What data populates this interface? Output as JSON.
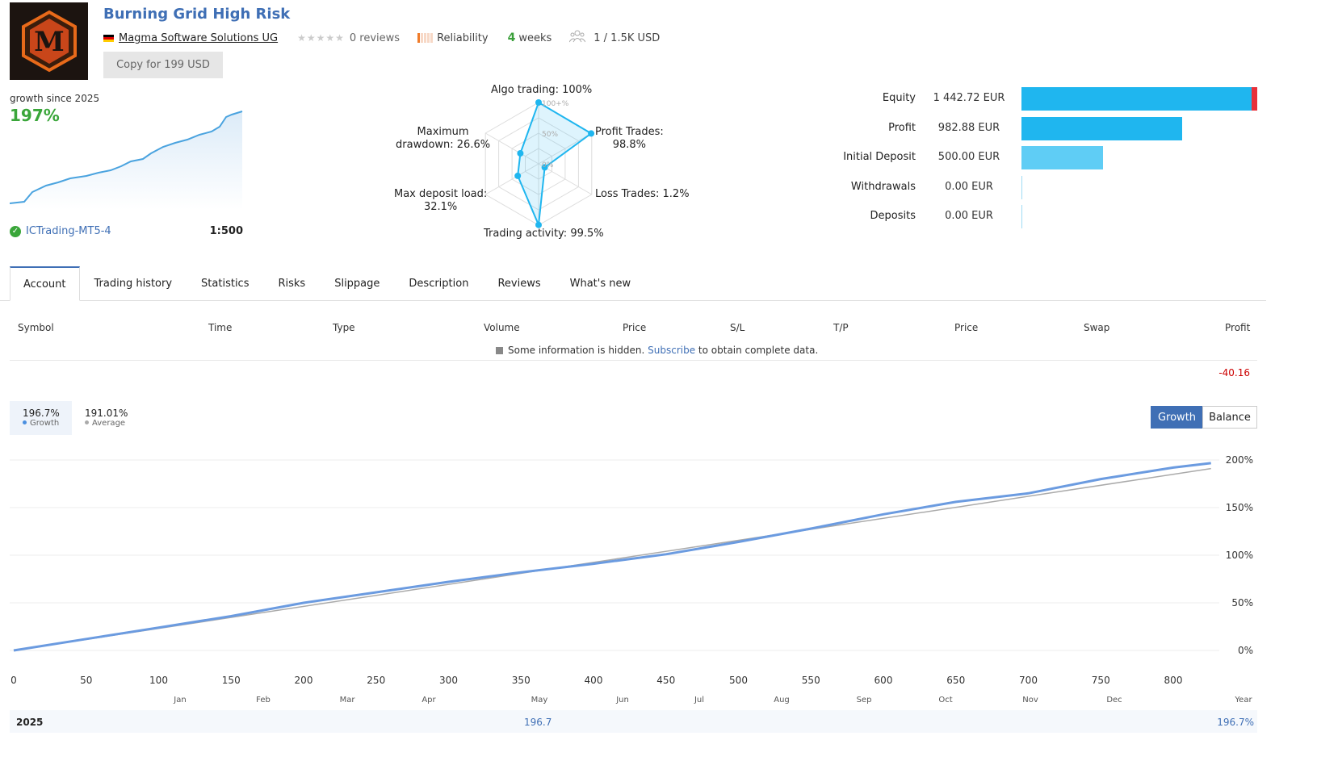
{
  "header": {
    "logo_letter": "M",
    "title": "Burning Grid High Risk",
    "author": "Magma Software Solutions UG",
    "reviews": "0 reviews",
    "reliability": "Reliability",
    "weeks_number": "4",
    "weeks_label": "weeks",
    "subscribers": "1 / 1.5K USD",
    "copy_button": "Copy for 199 USD"
  },
  "growth_summary": {
    "label": "growth since 2025",
    "value": "197%",
    "broker": "ICTrading-MT5-4",
    "leverage": "1:500"
  },
  "radar": {
    "labels": {
      "algo": "Algo trading: 100%",
      "profit_trades_1": "Profit Trades:",
      "profit_trades_2": "98.8%",
      "loss_trades": "Loss Trades: 1.2%",
      "activity": "Trading activity: 99.5%",
      "deposit_load_1": "Max deposit load:",
      "deposit_load_2": "32.1%",
      "drawdown_1": "Maximum",
      "drawdown_2": "drawdown: 26.6%"
    },
    "scale_labels": [
      "100+%",
      "50%",
      "0%"
    ],
    "values": {
      "algo": 100,
      "profit_trades": 98.8,
      "loss_trades": 1.2,
      "activity": 99.5,
      "deposit_load": 32.1,
      "drawdown": 26.6
    }
  },
  "balance_bars": [
    {
      "label": "Equity",
      "value": "1 442.72 EUR",
      "amount": 1442.72
    },
    {
      "label": "Profit",
      "value": "982.88 EUR",
      "amount": 982.88
    },
    {
      "label": "Initial Deposit",
      "value": "500.00 EUR",
      "amount": 500.0
    },
    {
      "label": "Withdrawals",
      "value": "0.00 EUR",
      "amount": 0
    },
    {
      "label": "Deposits",
      "value": "0.00 EUR",
      "amount": 0
    }
  ],
  "tabs": [
    "Account",
    "Trading history",
    "Statistics",
    "Risks",
    "Slippage",
    "Description",
    "Reviews",
    "What's new"
  ],
  "table": {
    "headers": [
      "Symbol",
      "Time",
      "Type",
      "Volume",
      "Price",
      "S/L",
      "T/P",
      "Price",
      "Swap",
      "Profit"
    ],
    "hidden_note_pre": "Some information is hidden.",
    "hidden_note_link": "Subscribe",
    "hidden_note_post": "to obtain complete data.",
    "profit": "-40.16"
  },
  "growth_chart": {
    "legend": [
      {
        "value": "196.7%",
        "name": "Growth"
      },
      {
        "value": "191.01%",
        "name": "Average"
      }
    ],
    "buttons": [
      "Growth",
      "Balance"
    ],
    "footer_year": "2025",
    "footer_mid": "196.7",
    "footer_end": "196.7%"
  },
  "colors": {
    "accent": "#3f6fb5",
    "growth_line": "#6b9be0",
    "average_line": "#aaaaaa",
    "bar_main": "#1fb6ef",
    "bar_light": "#5fcdf5",
    "loss_red": "#e8303a"
  },
  "chart_data": {
    "type": "line",
    "title": "",
    "x_ticks": [
      "0",
      "50",
      "100",
      "150",
      "200",
      "250",
      "300",
      "350",
      "400",
      "450",
      "500",
      "550",
      "600",
      "650",
      "700",
      "750",
      "800"
    ],
    "months": [
      "Jan",
      "Feb",
      "Mar",
      "Apr",
      "May",
      "Jun",
      "Jul",
      "Aug",
      "Sep",
      "Oct",
      "Nov",
      "Dec",
      "Year"
    ],
    "y_ticks": [
      "200%",
      "150%",
      "100%",
      "50%",
      "0%"
    ],
    "xlim": [
      0,
      830
    ],
    "ylim": [
      0,
      200
    ],
    "grid": true,
    "series": [
      {
        "name": "Growth",
        "x": [
          0,
          50,
          100,
          150,
          200,
          250,
          300,
          350,
          400,
          450,
          500,
          550,
          600,
          650,
          700,
          750,
          800,
          826
        ],
        "values": [
          0,
          12,
          24,
          36,
          50,
          61,
          72,
          82,
          91,
          101,
          114,
          128,
          143,
          156,
          165,
          180,
          192,
          196.7
        ]
      },
      {
        "name": "Average",
        "x": [
          0,
          826
        ],
        "values": [
          0,
          191.01
        ]
      }
    ]
  }
}
